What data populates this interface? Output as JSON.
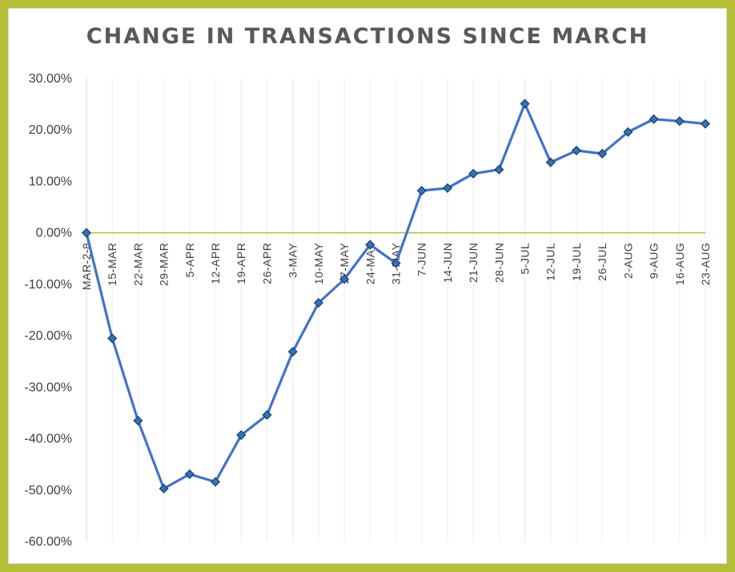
{
  "chart_data": {
    "type": "line",
    "title": "CHANGE IN TRANSACTIONS SINCE MARCH",
    "categories": [
      "MAR-2-8",
      "15-MAR",
      "22-MAR",
      "29-MAR",
      "5-APR",
      "12-APR",
      "19-APR",
      "26-APR",
      "3-MAY",
      "10-MAY",
      "17-MAY",
      "24-MAY",
      "31-MAY",
      "7-JUN",
      "14-JUN",
      "21-JUN",
      "28-JUN",
      "5-JUL",
      "12-JUL",
      "19-JUL",
      "26-JUL",
      "2-AUG",
      "9-AUG",
      "16-AUG",
      "23-AUG"
    ],
    "series": [
      {
        "values": [
          0.0,
          -20.5,
          -36.5,
          -49.7,
          -46.9,
          -48.4,
          -39.3,
          -35.4,
          -23.1,
          -13.6,
          -9.0,
          -2.3,
          -5.9,
          8.2,
          8.7,
          11.5,
          12.3,
          25.1,
          13.7,
          16.0,
          15.4,
          19.6,
          22.1,
          21.7,
          21.2
        ]
      }
    ],
    "ylim": [
      -60,
      30
    ],
    "yticks": [
      "30.00%",
      "20.00%",
      "10.00%",
      "0.00%",
      "-10.00%",
      "-20.00%",
      "-30.00%",
      "-40.00%",
      "-50.00%",
      "-60.00%"
    ],
    "xlabel": "",
    "ylabel": "",
    "grid": "vertical",
    "colors": {
      "line": "#4472c4",
      "marker": "#2e75b6",
      "zero_axis": "#a9c23f",
      "frame": "#b5be36"
    }
  }
}
